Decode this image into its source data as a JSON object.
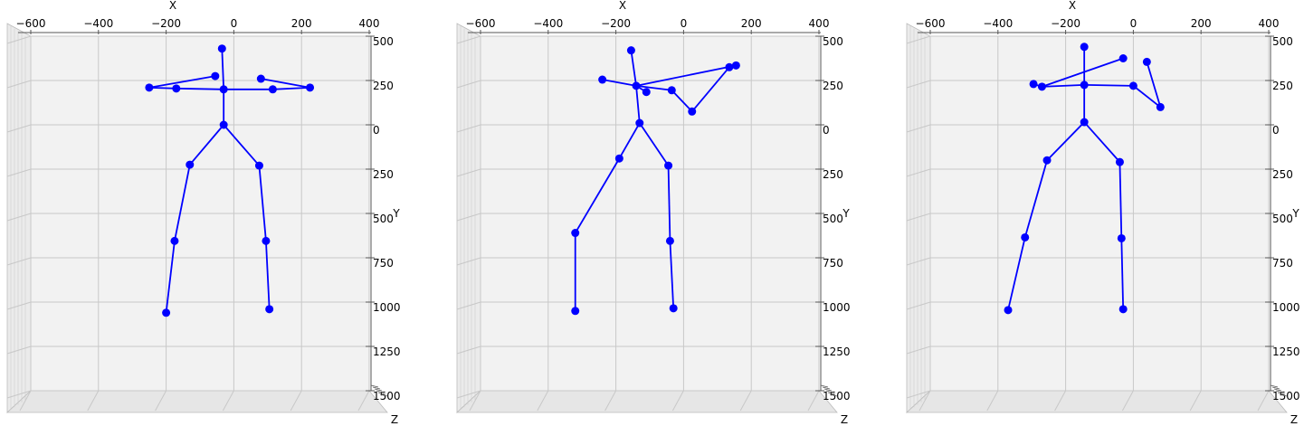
{
  "chart_data": [
    {
      "type": "scatter",
      "subtype": "3d-skeleton",
      "xlabel": "X",
      "ylabel": "Y",
      "zlabel": "Z",
      "xlim": [
        -600,
        400
      ],
      "ylim": [
        -1500,
        500
      ],
      "xticks": [
        -600,
        -400,
        -200,
        0,
        200,
        400
      ],
      "yticks": [
        500,
        250,
        0,
        -250,
        -500,
        -750,
        -1000,
        -1250,
        -1500
      ],
      "ytick_labels": [
        "500",
        "250",
        "0",
        "250",
        "500",
        "750",
        "1000",
        "1250",
        "1500"
      ],
      "grid": true,
      "color": "#0000ff",
      "joints": [
        [
          -35,
          430
        ],
        [
          -55,
          275
        ],
        [
          -250,
          210
        ],
        [
          -170,
          205
        ],
        [
          -30,
          200
        ],
        [
          80,
          260
        ],
        [
          225,
          210
        ],
        [
          115,
          200
        ],
        [
          -30,
          0
        ],
        [
          -130,
          -225
        ],
        [
          -175,
          -655
        ],
        [
          -200,
          -1060
        ],
        [
          75,
          -230
        ],
        [
          95,
          -655
        ],
        [
          105,
          -1040
        ]
      ],
      "bones": [
        [
          0,
          4
        ],
        [
          4,
          3
        ],
        [
          3,
          2
        ],
        [
          2,
          1
        ],
        [
          4,
          7
        ],
        [
          7,
          6
        ],
        [
          6,
          5
        ],
        [
          4,
          8
        ],
        [
          8,
          9
        ],
        [
          9,
          10
        ],
        [
          10,
          11
        ],
        [
          8,
          12
        ],
        [
          12,
          13
        ],
        [
          13,
          14
        ]
      ]
    },
    {
      "type": "scatter",
      "subtype": "3d-skeleton",
      "xlabel": "X",
      "ylabel": "Y",
      "zlabel": "Z",
      "xlim": [
        -600,
        400
      ],
      "ylim": [
        -1500,
        500
      ],
      "xticks": [
        -600,
        -400,
        -200,
        0,
        200,
        400
      ],
      "yticks": [
        500,
        250,
        0,
        -250,
        -500,
        -750,
        -1000,
        -1250,
        -1500
      ],
      "ytick_labels": [
        "500",
        "250",
        "0",
        "250",
        "500",
        "750",
        "1000",
        "1250",
        "1500"
      ],
      "grid": true,
      "color": "#0000ff",
      "joints": [
        [
          -155,
          420
        ],
        [
          -240,
          255
        ],
        [
          -140,
          220
        ],
        [
          -110,
          185
        ],
        [
          -35,
          195
        ],
        [
          25,
          75
        ],
        [
          135,
          325
        ],
        [
          155,
          335
        ],
        [
          -130,
          10
        ],
        [
          -190,
          -190
        ],
        [
          -320,
          -610
        ],
        [
          -320,
          -1050
        ],
        [
          -45,
          -230
        ],
        [
          -40,
          -655
        ],
        [
          -30,
          -1035
        ]
      ],
      "bones": [
        [
          0,
          2
        ],
        [
          2,
          1
        ],
        [
          2,
          3
        ],
        [
          2,
          4
        ],
        [
          4,
          5
        ],
        [
          5,
          6
        ],
        [
          2,
          7
        ],
        [
          2,
          8
        ],
        [
          8,
          9
        ],
        [
          9,
          10
        ],
        [
          10,
          11
        ],
        [
          8,
          12
        ],
        [
          12,
          13
        ],
        [
          13,
          14
        ]
      ]
    },
    {
      "type": "scatter",
      "subtype": "3d-skeleton",
      "xlabel": "X",
      "ylabel": "Y",
      "zlabel": "Z",
      "xlim": [
        -600,
        400
      ],
      "ylim": [
        -1500,
        500
      ],
      "xticks": [
        -600,
        -400,
        -200,
        0,
        200,
        400
      ],
      "yticks": [
        500,
        250,
        0,
        -250,
        -500,
        -750,
        -1000,
        -1250,
        -1500
      ],
      "ytick_labels": [
        "500",
        "250",
        "0",
        "250",
        "500",
        "750",
        "1000",
        "1250",
        "1500"
      ],
      "grid": true,
      "color": "#0000ff",
      "joints": [
        [
          -145,
          440
        ],
        [
          -30,
          375
        ],
        [
          -295,
          230
        ],
        [
          -270,
          215
        ],
        [
          -145,
          225
        ],
        [
          0,
          220
        ],
        [
          80,
          100
        ],
        [
          40,
          355
        ],
        [
          -145,
          15
        ],
        [
          -255,
          -200
        ],
        [
          -320,
          -635
        ],
        [
          -370,
          -1045
        ],
        [
          -40,
          -210
        ],
        [
          -35,
          -640
        ],
        [
          -30,
          -1040
        ]
      ],
      "bones": [
        [
          0,
          4
        ],
        [
          4,
          3
        ],
        [
          3,
          2
        ],
        [
          3,
          1
        ],
        [
          4,
          5
        ],
        [
          5,
          6
        ],
        [
          6,
          7
        ],
        [
          4,
          8
        ],
        [
          8,
          9
        ],
        [
          9,
          10
        ],
        [
          10,
          11
        ],
        [
          8,
          12
        ],
        [
          12,
          13
        ],
        [
          13,
          14
        ]
      ]
    }
  ]
}
